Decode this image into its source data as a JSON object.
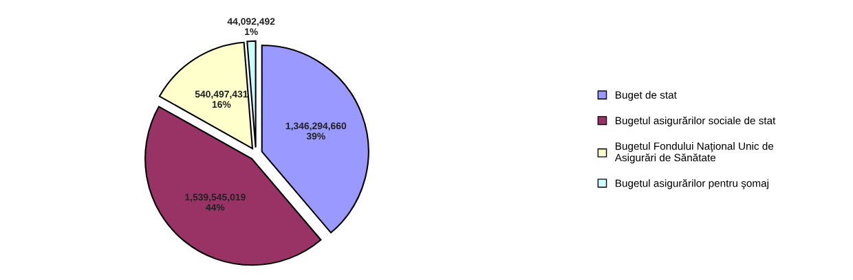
{
  "chart_data": {
    "type": "pie",
    "categories": [
      "Buget de stat",
      "Bugetul asigurărilor sociale de stat",
      "Bugetul Fondului Naţional Unic de Asigurări de Sănătate",
      "Bugetul asigurărilor pentru şomaj"
    ],
    "values": [
      1346294660,
      1539545019,
      540497431,
      44092492
    ],
    "colors": [
      "#9999ff",
      "#993366",
      "#ffffcc",
      "#ccffff"
    ],
    "value_labels": [
      "1,346,294,660\n39%",
      "1,539,545,019\n44%",
      "540,497,431\n16%",
      "44,092,492\n1%"
    ],
    "legend": "right"
  }
}
